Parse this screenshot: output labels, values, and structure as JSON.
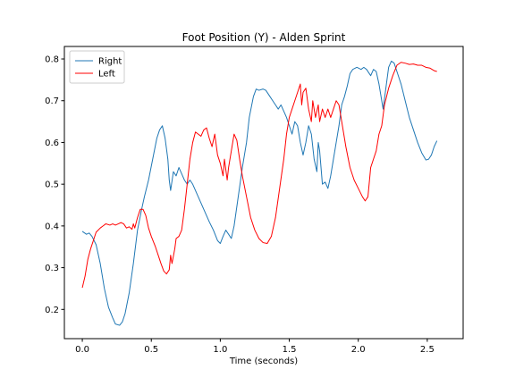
{
  "chart_data": {
    "type": "line",
    "title": "Foot Position (Y) - Alden Sprint",
    "xlabel": "Time (seconds)",
    "ylabel": "",
    "xlim": [
      -0.13,
      2.76
    ],
    "ylim": [
      0.13,
      0.83
    ],
    "x_ticks": [
      0.0,
      0.5,
      1.0,
      1.5,
      2.0,
      2.5
    ],
    "x_tick_labels": [
      "0.0",
      "0.5",
      "1.0",
      "1.5",
      "2.0",
      "2.5"
    ],
    "y_ticks": [
      0.2,
      0.3,
      0.4,
      0.5,
      0.6,
      0.7,
      0.8
    ],
    "y_tick_labels": [
      "0.2",
      "0.3",
      "0.4",
      "0.5",
      "0.6",
      "0.7",
      "0.8"
    ],
    "grid": false,
    "legend_position": "upper-left",
    "series": [
      {
        "name": "Right",
        "color": "#1f77b4",
        "points": [
          [
            0.0,
            0.387
          ],
          [
            0.03,
            0.38
          ],
          [
            0.05,
            0.383
          ],
          [
            0.07,
            0.375
          ],
          [
            0.1,
            0.355
          ],
          [
            0.13,
            0.31
          ],
          [
            0.16,
            0.25
          ],
          [
            0.19,
            0.205
          ],
          [
            0.22,
            0.18
          ],
          [
            0.24,
            0.165
          ],
          [
            0.27,
            0.162
          ],
          [
            0.29,
            0.17
          ],
          [
            0.31,
            0.19
          ],
          [
            0.34,
            0.24
          ],
          [
            0.37,
            0.31
          ],
          [
            0.4,
            0.39
          ],
          [
            0.43,
            0.44
          ],
          [
            0.45,
            0.47
          ],
          [
            0.48,
            0.51
          ],
          [
            0.51,
            0.56
          ],
          [
            0.54,
            0.61
          ],
          [
            0.56,
            0.63
          ],
          [
            0.58,
            0.64
          ],
          [
            0.6,
            0.61
          ],
          [
            0.62,
            0.56
          ],
          [
            0.63,
            0.51
          ],
          [
            0.64,
            0.485
          ],
          [
            0.66,
            0.53
          ],
          [
            0.68,
            0.52
          ],
          [
            0.7,
            0.54
          ],
          [
            0.72,
            0.525
          ],
          [
            0.74,
            0.51
          ],
          [
            0.76,
            0.5
          ],
          [
            0.78,
            0.51
          ],
          [
            0.8,
            0.5
          ],
          [
            0.84,
            0.47
          ],
          [
            0.88,
            0.44
          ],
          [
            0.92,
            0.41
          ],
          [
            0.95,
            0.39
          ],
          [
            0.98,
            0.365
          ],
          [
            1.0,
            0.358
          ],
          [
            1.02,
            0.375
          ],
          [
            1.04,
            0.39
          ],
          [
            1.06,
            0.38
          ],
          [
            1.08,
            0.37
          ],
          [
            1.1,
            0.4
          ],
          [
            1.13,
            0.47
          ],
          [
            1.16,
            0.54
          ],
          [
            1.19,
            0.6
          ],
          [
            1.21,
            0.66
          ],
          [
            1.24,
            0.71
          ],
          [
            1.26,
            0.728
          ],
          [
            1.28,
            0.725
          ],
          [
            1.31,
            0.728
          ],
          [
            1.33,
            0.725
          ],
          [
            1.36,
            0.71
          ],
          [
            1.38,
            0.7
          ],
          [
            1.4,
            0.69
          ],
          [
            1.42,
            0.68
          ],
          [
            1.44,
            0.69
          ],
          [
            1.46,
            0.675
          ],
          [
            1.48,
            0.66
          ],
          [
            1.5,
            0.64
          ],
          [
            1.52,
            0.62
          ],
          [
            1.54,
            0.65
          ],
          [
            1.56,
            0.64
          ],
          [
            1.58,
            0.6
          ],
          [
            1.6,
            0.57
          ],
          [
            1.62,
            0.6
          ],
          [
            1.64,
            0.64
          ],
          [
            1.66,
            0.62
          ],
          [
            1.68,
            0.56
          ],
          [
            1.7,
            0.53
          ],
          [
            1.71,
            0.6
          ],
          [
            1.72,
            0.58
          ],
          [
            1.73,
            0.54
          ],
          [
            1.74,
            0.5
          ],
          [
            1.76,
            0.505
          ],
          [
            1.78,
            0.49
          ],
          [
            1.8,
            0.52
          ],
          [
            1.82,
            0.56
          ],
          [
            1.84,
            0.6
          ],
          [
            1.86,
            0.64
          ],
          [
            1.88,
            0.69
          ],
          [
            1.9,
            0.71
          ],
          [
            1.92,
            0.735
          ],
          [
            1.94,
            0.765
          ],
          [
            1.96,
            0.775
          ],
          [
            1.99,
            0.78
          ],
          [
            2.02,
            0.775
          ],
          [
            2.04,
            0.78
          ],
          [
            2.06,
            0.775
          ],
          [
            2.09,
            0.76
          ],
          [
            2.11,
            0.775
          ],
          [
            2.13,
            0.77
          ],
          [
            2.15,
            0.74
          ],
          [
            2.17,
            0.7
          ],
          [
            2.18,
            0.68
          ],
          [
            2.2,
            0.73
          ],
          [
            2.22,
            0.78
          ],
          [
            2.24,
            0.795
          ],
          [
            2.26,
            0.79
          ],
          [
            2.28,
            0.77
          ],
          [
            2.31,
            0.74
          ],
          [
            2.34,
            0.7
          ],
          [
            2.37,
            0.66
          ],
          [
            2.4,
            0.63
          ],
          [
            2.43,
            0.6
          ],
          [
            2.46,
            0.575
          ],
          [
            2.49,
            0.558
          ],
          [
            2.51,
            0.56
          ],
          [
            2.53,
            0.57
          ],
          [
            2.55,
            0.59
          ],
          [
            2.57,
            0.604
          ]
        ]
      },
      {
        "name": "Left",
        "color": "#ff0000",
        "points": [
          [
            0.0,
            0.252
          ],
          [
            0.02,
            0.28
          ],
          [
            0.04,
            0.32
          ],
          [
            0.06,
            0.345
          ],
          [
            0.08,
            0.365
          ],
          [
            0.1,
            0.385
          ],
          [
            0.13,
            0.395
          ],
          [
            0.15,
            0.4
          ],
          [
            0.17,
            0.405
          ],
          [
            0.2,
            0.402
          ],
          [
            0.22,
            0.405
          ],
          [
            0.24,
            0.402
          ],
          [
            0.26,
            0.405
          ],
          [
            0.28,
            0.408
          ],
          [
            0.3,
            0.405
          ],
          [
            0.32,
            0.395
          ],
          [
            0.34,
            0.398
          ],
          [
            0.36,
            0.392
          ],
          [
            0.37,
            0.405
          ],
          [
            0.38,
            0.395
          ],
          [
            0.4,
            0.42
          ],
          [
            0.42,
            0.44
          ],
          [
            0.44,
            0.44
          ],
          [
            0.46,
            0.425
          ],
          [
            0.48,
            0.395
          ],
          [
            0.5,
            0.375
          ],
          [
            0.53,
            0.35
          ],
          [
            0.55,
            0.33
          ],
          [
            0.57,
            0.31
          ],
          [
            0.59,
            0.292
          ],
          [
            0.61,
            0.285
          ],
          [
            0.63,
            0.295
          ],
          [
            0.64,
            0.33
          ],
          [
            0.65,
            0.31
          ],
          [
            0.67,
            0.345
          ],
          [
            0.68,
            0.37
          ],
          [
            0.7,
            0.375
          ],
          [
            0.72,
            0.39
          ],
          [
            0.74,
            0.44
          ],
          [
            0.76,
            0.5
          ],
          [
            0.78,
            0.56
          ],
          [
            0.8,
            0.6
          ],
          [
            0.82,
            0.625
          ],
          [
            0.84,
            0.62
          ],
          [
            0.86,
            0.615
          ],
          [
            0.88,
            0.63
          ],
          [
            0.9,
            0.635
          ],
          [
            0.92,
            0.61
          ],
          [
            0.94,
            0.59
          ],
          [
            0.96,
            0.62
          ],
          [
            0.98,
            0.57
          ],
          [
            1.0,
            0.55
          ],
          [
            1.02,
            0.52
          ],
          [
            1.03,
            0.56
          ],
          [
            1.05,
            0.51
          ],
          [
            1.06,
            0.54
          ],
          [
            1.08,
            0.58
          ],
          [
            1.1,
            0.62
          ],
          [
            1.12,
            0.605
          ],
          [
            1.14,
            0.56
          ],
          [
            1.16,
            0.52
          ],
          [
            1.19,
            0.47
          ],
          [
            1.22,
            0.42
          ],
          [
            1.25,
            0.39
          ],
          [
            1.28,
            0.37
          ],
          [
            1.31,
            0.36
          ],
          [
            1.34,
            0.358
          ],
          [
            1.37,
            0.375
          ],
          [
            1.4,
            0.42
          ],
          [
            1.43,
            0.49
          ],
          [
            1.46,
            0.56
          ],
          [
            1.48,
            0.62
          ],
          [
            1.5,
            0.66
          ],
          [
            1.52,
            0.68
          ],
          [
            1.54,
            0.7
          ],
          [
            1.56,
            0.72
          ],
          [
            1.58,
            0.74
          ],
          [
            1.59,
            0.69
          ],
          [
            1.6,
            0.72
          ],
          [
            1.62,
            0.73
          ],
          [
            1.64,
            0.68
          ],
          [
            1.66,
            0.65
          ],
          [
            1.67,
            0.7
          ],
          [
            1.69,
            0.66
          ],
          [
            1.71,
            0.69
          ],
          [
            1.72,
            0.65
          ],
          [
            1.74,
            0.68
          ],
          [
            1.76,
            0.66
          ],
          [
            1.78,
            0.68
          ],
          [
            1.8,
            0.66
          ],
          [
            1.82,
            0.68
          ],
          [
            1.84,
            0.7
          ],
          [
            1.86,
            0.69
          ],
          [
            1.88,
            0.65
          ],
          [
            1.91,
            0.59
          ],
          [
            1.94,
            0.54
          ],
          [
            1.97,
            0.51
          ],
          [
            2.0,
            0.49
          ],
          [
            2.03,
            0.47
          ],
          [
            2.05,
            0.46
          ],
          [
            2.07,
            0.47
          ],
          [
            2.09,
            0.54
          ],
          [
            2.11,
            0.56
          ],
          [
            2.13,
            0.58
          ],
          [
            2.15,
            0.62
          ],
          [
            2.17,
            0.64
          ],
          [
            2.19,
            0.69
          ],
          [
            2.22,
            0.73
          ],
          [
            2.25,
            0.76
          ],
          [
            2.28,
            0.785
          ],
          [
            2.31,
            0.792
          ],
          [
            2.34,
            0.79
          ],
          [
            2.37,
            0.787
          ],
          [
            2.4,
            0.788
          ],
          [
            2.43,
            0.785
          ],
          [
            2.46,
            0.785
          ],
          [
            2.49,
            0.78
          ],
          [
            2.52,
            0.778
          ],
          [
            2.55,
            0.772
          ],
          [
            2.57,
            0.77
          ]
        ]
      }
    ]
  }
}
